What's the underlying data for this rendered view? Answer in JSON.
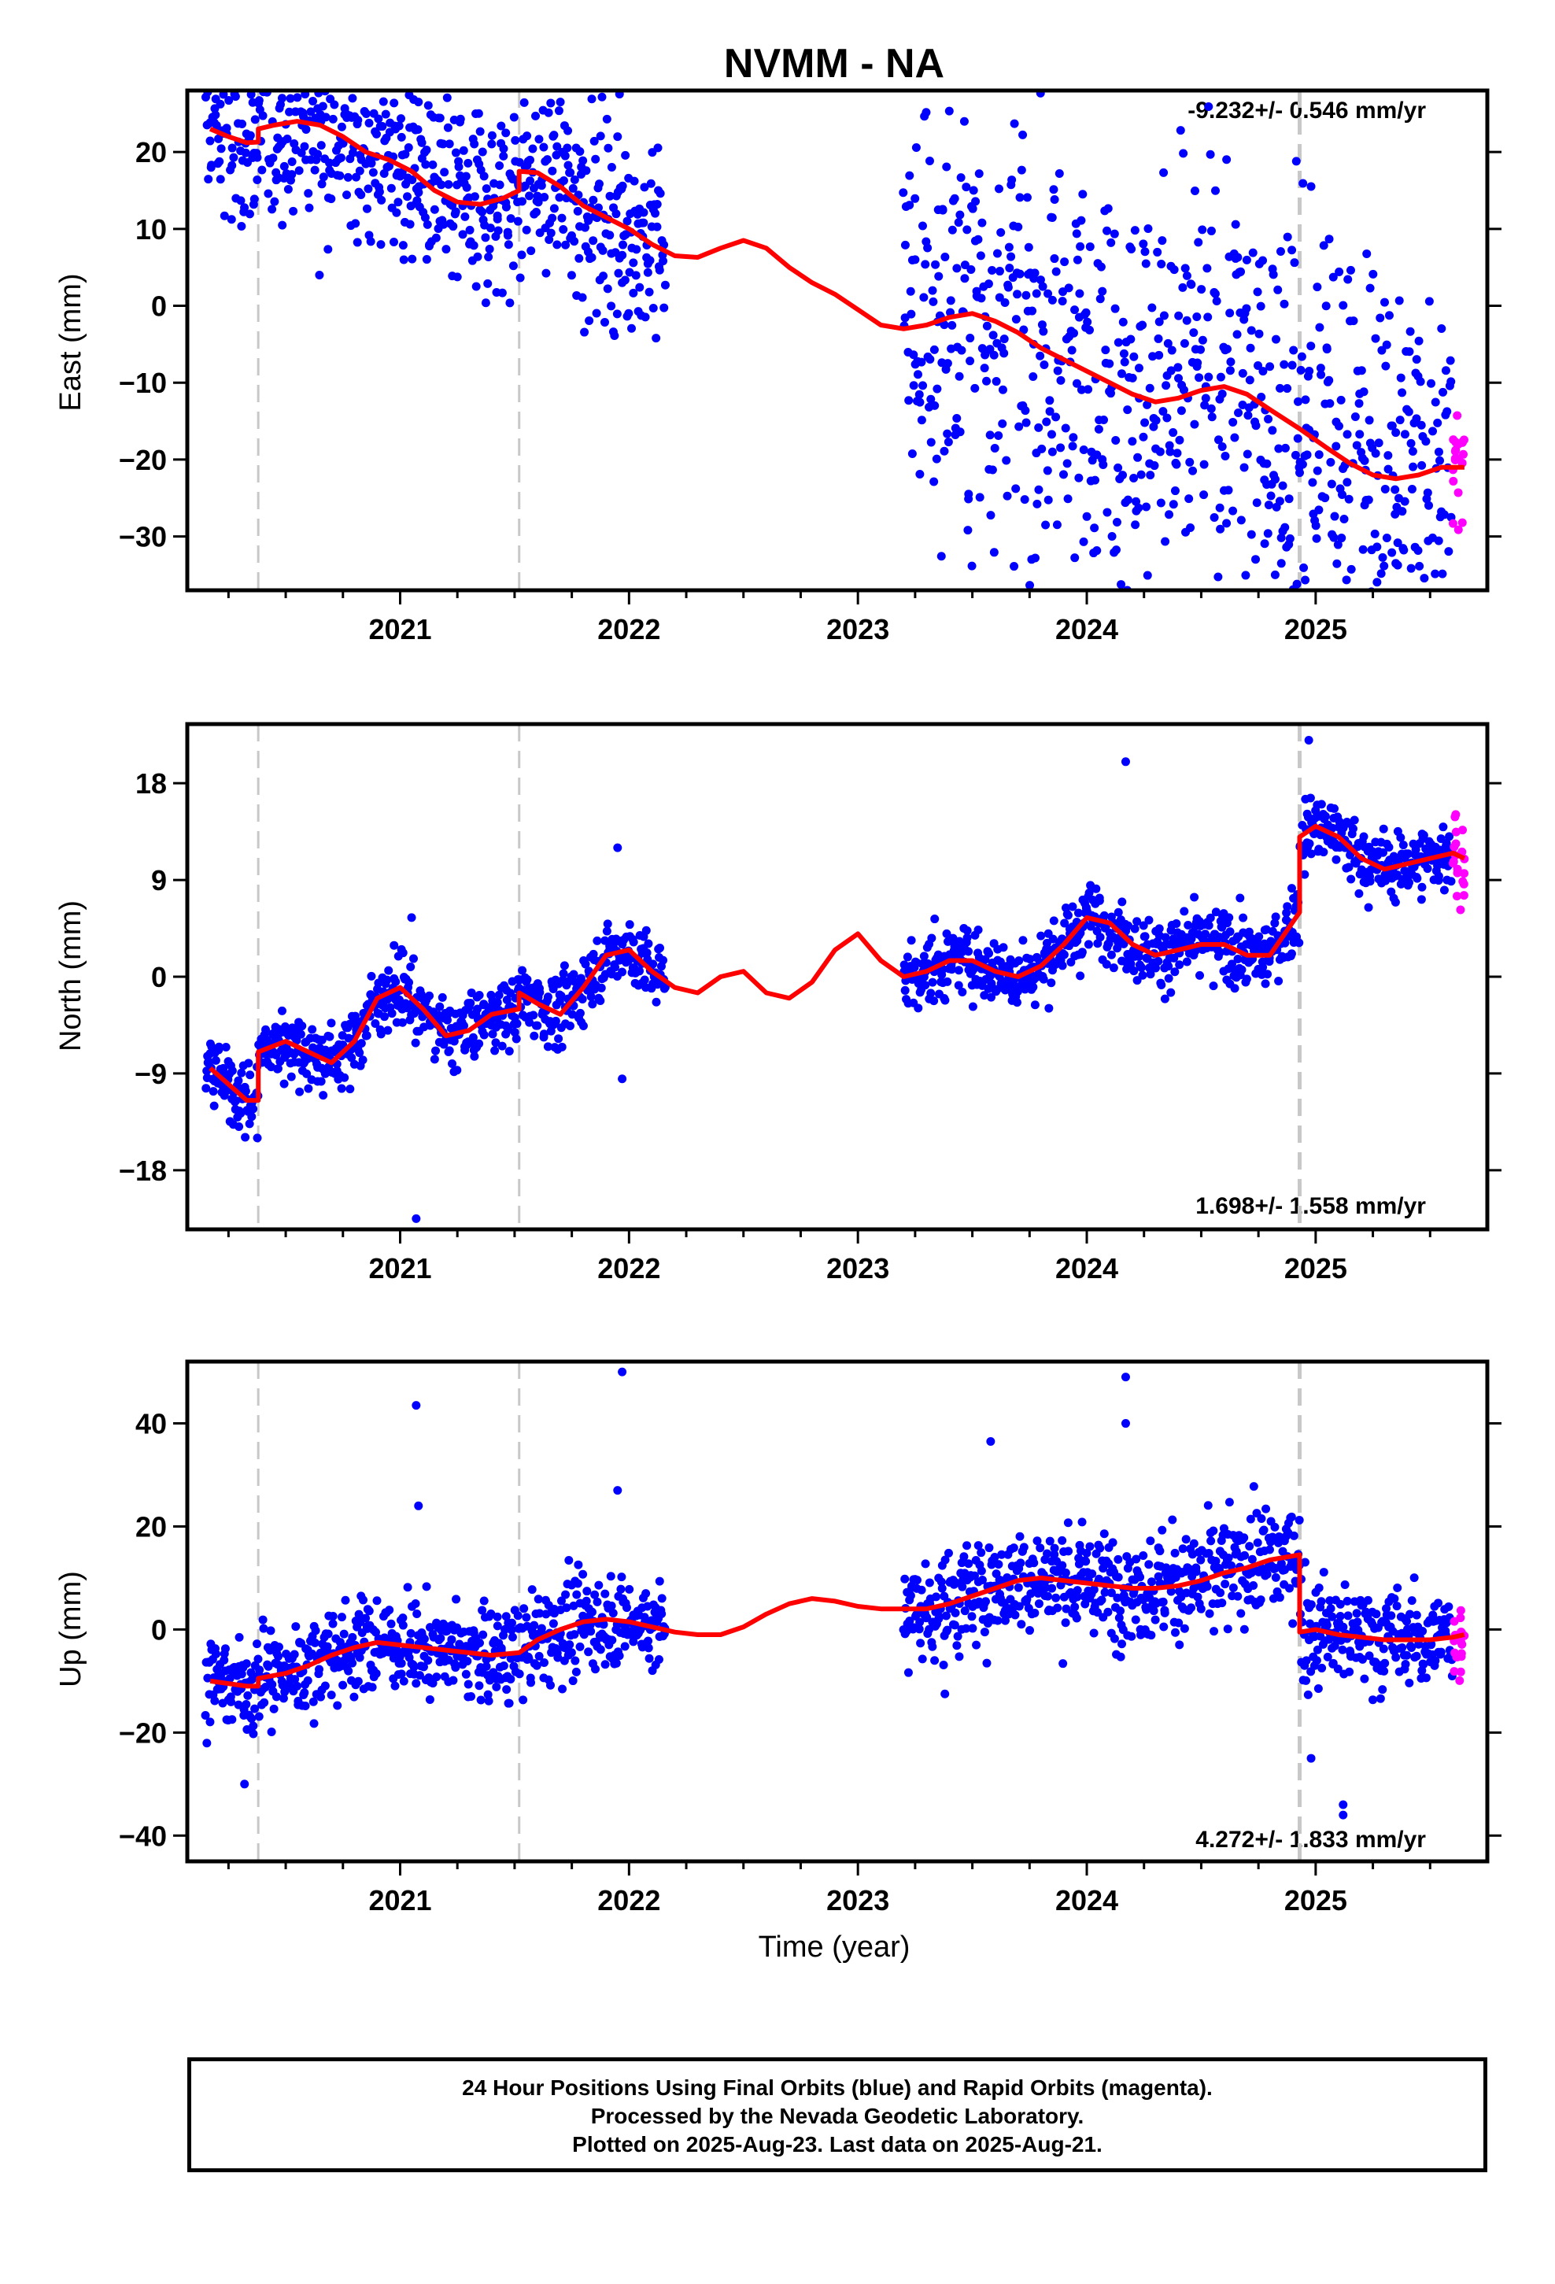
{
  "title": "NVMM - NA",
  "xlabel": "Time (year)",
  "footer": {
    "line1": "24 Hour Positions Using Final Orbits (blue) and Rapid Orbits (magenta).",
    "line2": "Processed by the Nevada Geodetic Laboratory.",
    "line3": "Plotted on 2025-Aug-23. Last data on 2025-Aug-21."
  },
  "colors": {
    "final": "#0000ff",
    "rapid": "#ff00ff",
    "model": "#ff0000",
    "step": "#c8c8c8"
  },
  "chart_data": [
    {
      "type": "scatter",
      "panel": "east",
      "ylabel": "East (mm)",
      "rate_text": "-9.232+/- 0.546 mm/yr",
      "xlim": [
        2020.07,
        2025.75
      ],
      "ylim": [
        -37,
        28
      ],
      "xticks": [
        2021,
        2022,
        2023,
        2024,
        2025
      ],
      "yticks": [
        20,
        10,
        0,
        -10,
        -20,
        -30
      ],
      "steps": [
        2020.38,
        2021.52,
        2024.93
      ],
      "data_gap": [
        2022.18,
        2023.22
      ],
      "model": {
        "x": [
          2020.17,
          2020.25,
          2020.33,
          2020.38,
          2020.38,
          2020.45,
          2020.55,
          2020.65,
          2020.75,
          2020.85,
          2020.95,
          2021.05,
          2021.15,
          2021.25,
          2021.35,
          2021.45,
          2021.52,
          2021.52,
          2021.6,
          2021.7,
          2021.8,
          2021.9,
          2022.0,
          2022.1,
          2022.2,
          2022.3,
          2022.4,
          2022.5,
          2022.6,
          2022.7,
          2022.8,
          2022.9,
          2023.0,
          2023.1,
          2023.2,
          2023.3,
          2023.4,
          2023.5,
          2023.6,
          2023.7,
          2023.8,
          2023.9,
          2024.0,
          2024.1,
          2024.2,
          2024.3,
          2024.4,
          2024.5,
          2024.6,
          2024.7,
          2024.8,
          2024.93,
          2024.93,
          2025.05,
          2025.15,
          2025.25,
          2025.35,
          2025.45,
          2025.55,
          2025.65
        ],
        "y": [
          23,
          22,
          21.2,
          21.3,
          23,
          23.5,
          24,
          23.5,
          22,
          20,
          19,
          17.5,
          15,
          13.5,
          13.2,
          14,
          15,
          17.5,
          17.3,
          15.5,
          13,
          11.5,
          10,
          8,
          6.5,
          6.3,
          7.5,
          8.5,
          7.5,
          5,
          3,
          1.5,
          -0.5,
          -2.5,
          -3,
          -2.5,
          -1.5,
          -1,
          -2,
          -3.5,
          -5.5,
          -7,
          -8.5,
          -10,
          -11.5,
          -12.5,
          -12,
          -11,
          -10.5,
          -11.5,
          -13.5,
          -16,
          -16,
          -18.5,
          -20.5,
          -22,
          -22.5,
          -22,
          -21,
          -21
        ]
      },
      "final_ranges": [
        [
          2020.15,
          2022.16,
          10
        ],
        [
          2023.2,
          2025.6,
          23
        ]
      ],
      "rapid_range": [
        2025.6,
        2025.65
      ],
      "outliers": [
        [
          2021.08,
          26.5
        ],
        [
          2021.7,
          26.5
        ],
        [
          2021.95,
          22
        ],
        [
          2021.97,
          3
        ],
        [
          2024.85,
          -33.5
        ],
        [
          2025.35,
          -33.5
        ],
        [
          2023.25,
          6
        ],
        [
          2023.85,
          -19
        ]
      ]
    },
    {
      "type": "scatter",
      "panel": "north",
      "ylabel": "North (mm)",
      "rate_text": "1.698+/- 1.558 mm/yr",
      "xlim": [
        2020.07,
        2025.75
      ],
      "ylim": [
        -23.5,
        23.5
      ],
      "xticks": [
        2021,
        2022,
        2023,
        2024,
        2025
      ],
      "yticks": [
        18,
        9,
        0,
        -9,
        -18
      ],
      "steps": [
        2020.38,
        2021.52,
        2024.93
      ],
      "data_gap": [
        2022.18,
        2023.22
      ],
      "model": {
        "x": [
          2020.17,
          2020.25,
          2020.33,
          2020.38,
          2020.38,
          2020.5,
          2020.6,
          2020.7,
          2020.8,
          2020.9,
          2021.0,
          2021.1,
          2021.2,
          2021.3,
          2021.4,
          2021.52,
          2021.52,
          2021.6,
          2021.7,
          2021.8,
          2021.9,
          2022.0,
          2022.1,
          2022.2,
          2022.3,
          2022.4,
          2022.5,
          2022.6,
          2022.7,
          2022.8,
          2022.9,
          2023.0,
          2023.1,
          2023.2,
          2023.3,
          2023.4,
          2023.5,
          2023.6,
          2023.7,
          2023.8,
          2023.9,
          2024.0,
          2024.1,
          2024.2,
          2024.3,
          2024.4,
          2024.5,
          2024.6,
          2024.7,
          2024.8,
          2024.93,
          2024.93,
          2025.0,
          2025.1,
          2025.2,
          2025.3,
          2025.4,
          2025.5,
          2025.6,
          2025.65
        ],
        "y": [
          -8.5,
          -10,
          -11.5,
          -11.5,
          -7,
          -6,
          -7,
          -8,
          -6,
          -2,
          -1,
          -3,
          -5.5,
          -5,
          -3.5,
          -3,
          -1.5,
          -2.5,
          -3.5,
          -1,
          2,
          2.5,
          0.5,
          -1,
          -1.5,
          0,
          0.5,
          -1.5,
          -2,
          -0.5,
          2.5,
          4,
          1.5,
          0,
          0.5,
          1.5,
          1.5,
          0.5,
          0,
          1,
          3,
          5.5,
          5,
          3,
          2,
          2.5,
          3,
          3,
          2,
          2,
          6,
          13,
          14,
          13,
          11,
          10,
          10.5,
          11,
          11.5,
          11
        ]
      },
      "final_ranges": [
        [
          2020.15,
          2022.16,
          2.5
        ],
        [
          2023.2,
          2025.6,
          2.5
        ]
      ],
      "rapid_range": [
        2025.6,
        2025.65
      ],
      "outliers": [
        [
          2021.07,
          -22.5
        ],
        [
          2021.05,
          5.5
        ],
        [
          2021.97,
          -9.5
        ],
        [
          2024.17,
          20
        ],
        [
          2024.97,
          22
        ],
        [
          2021.95,
          12
        ]
      ]
    },
    {
      "type": "scatter",
      "panel": "up",
      "ylabel": "Up (mm)",
      "rate_text": "4.272+/- 1.833 mm/yr",
      "xlim": [
        2020.07,
        2025.75
      ],
      "ylim": [
        -45,
        52
      ],
      "xticks": [
        2021,
        2022,
        2023,
        2024,
        2025
      ],
      "yticks": [
        40,
        20,
        0,
        -20,
        -40
      ],
      "steps": [
        2020.38,
        2021.52,
        2024.93
      ],
      "data_gap": [
        2022.18,
        2023.22
      ],
      "model": {
        "x": [
          2020.17,
          2020.25,
          2020.33,
          2020.38,
          2020.38,
          2020.5,
          2020.6,
          2020.7,
          2020.8,
          2020.9,
          2021.0,
          2021.1,
          2021.2,
          2021.3,
          2021.4,
          2021.52,
          2021.6,
          2021.7,
          2021.8,
          2021.9,
          2022.0,
          2022.1,
          2022.2,
          2022.3,
          2022.4,
          2022.5,
          2022.6,
          2022.7,
          2022.8,
          2022.9,
          2023.0,
          2023.1,
          2023.2,
          2023.3,
          2023.4,
          2023.5,
          2023.6,
          2023.7,
          2023.8,
          2023.9,
          2024.0,
          2024.1,
          2024.2,
          2024.3,
          2024.4,
          2024.5,
          2024.6,
          2024.7,
          2024.8,
          2024.93,
          2024.93,
          2025.0,
          2025.1,
          2025.2,
          2025.3,
          2025.4,
          2025.5,
          2025.6,
          2025.65
        ],
        "y": [
          -10,
          -10.5,
          -11,
          -11,
          -9.5,
          -8.5,
          -7,
          -5,
          -3.5,
          -2.5,
          -3,
          -3.5,
          -4,
          -4.5,
          -5,
          -4.5,
          -2,
          0,
          1.5,
          2,
          1.5,
          0.5,
          -0.5,
          -1,
          -1,
          0.5,
          3,
          5,
          6,
          5.5,
          4.5,
          4,
          4,
          4,
          5,
          6.5,
          8,
          9.5,
          10,
          9.5,
          9,
          8.5,
          8,
          8,
          8.5,
          9.5,
          11,
          12,
          13.5,
          14.5,
          -0.5,
          0,
          -1,
          -1.5,
          -2,
          -2,
          -2,
          -1.5,
          -1
        ]
      },
      "final_ranges": [
        [
          2020.15,
          2022.16,
          7
        ],
        [
          2023.2,
          2025.6,
          8
        ]
      ],
      "rapid_range": [
        2025.6,
        2025.65
      ],
      "outliers": [
        [
          2021.07,
          43.5
        ],
        [
          2021.97,
          50
        ],
        [
          2024.17,
          49
        ],
        [
          2024.17,
          40
        ],
        [
          2024.98,
          -25
        ],
        [
          2025.12,
          -34
        ],
        [
          2025.12,
          -36
        ],
        [
          2020.32,
          -30
        ],
        [
          2023.38,
          -12.5
        ],
        [
          2023.58,
          36.5
        ],
        [
          2021.08,
          24
        ],
        [
          2021.95,
          27
        ]
      ]
    }
  ]
}
